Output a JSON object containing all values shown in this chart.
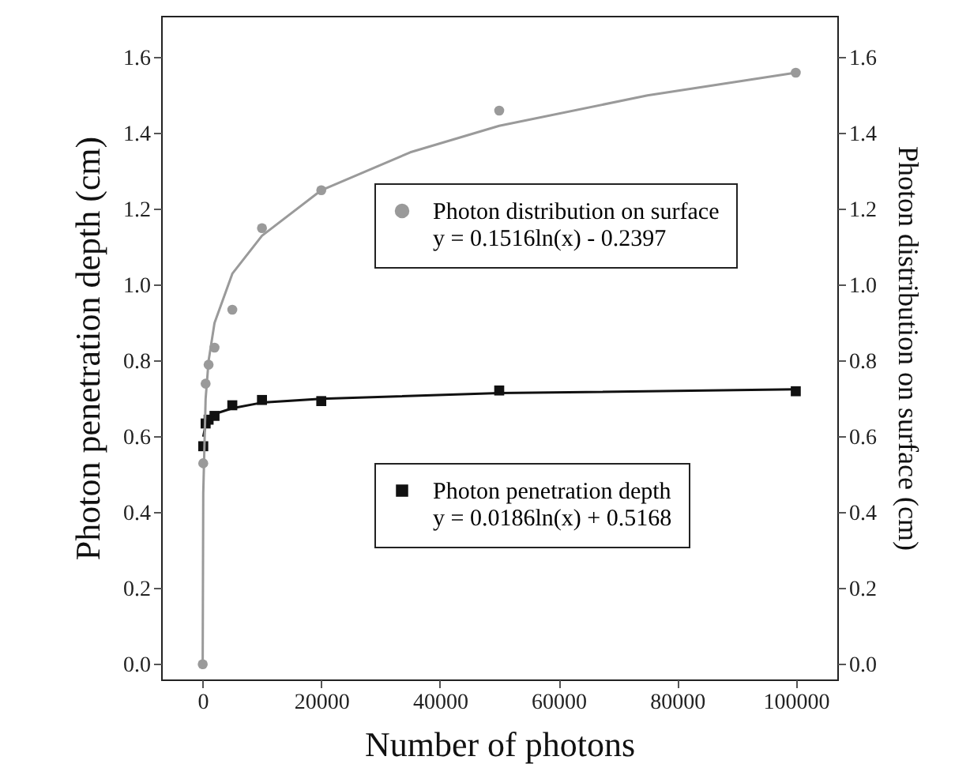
{
  "chart_data": {
    "type": "scatter",
    "xlabel": "Number of photons",
    "ylabel": "Photon penetration depth (cm)",
    "y2label": "Photon distribution on surface (cm)",
    "xlim": [
      -7000,
      107000
    ],
    "xticks": [
      0,
      20000,
      40000,
      60000,
      80000,
      100000
    ],
    "ylim": [
      -0.04,
      1.71
    ],
    "yticks": [
      {
        "value": 0,
        "label": "0.0"
      },
      0.2,
      0.4,
      0.6,
      0.8,
      {
        "value": 1,
        "label": "1.0"
      },
      1.2,
      1.4,
      1.6
    ],
    "y2lim": [
      -0.04,
      1.71
    ],
    "y2ticks": [
      {
        "value": 0,
        "label": "0.0"
      },
      0.2,
      0.4,
      0.6,
      0.8,
      {
        "value": 1,
        "label": "1.0"
      },
      1.2,
      1.4,
      1.6
    ],
    "grid": false,
    "legend": "right",
    "annotations": [
      "y = 0.1516ln(x) - 0.2397",
      "y = 0.0186ln(x) + 0.5168"
    ],
    "series": [
      {
        "name": "Photon distribution on surface",
        "axis": "y2",
        "marker": "circle",
        "color": "#9a9a9a",
        "x": [
          10,
          100,
          500,
          1000,
          2000,
          5000,
          10000,
          20000,
          50000,
          100000
        ],
        "values": [
          0.0,
          0.53,
          0.74,
          0.79,
          0.835,
          0.935,
          1.15,
          1.25,
          1.46,
          1.56
        ]
      },
      {
        "type": "line",
        "axis": "y2",
        "color": "#9a9a9a",
        "x": [
          5,
          100,
          500,
          1000,
          2000,
          5000,
          10000,
          20000,
          35000,
          50000,
          75000,
          100000
        ],
        "values": [
          0.0,
          0.45,
          0.7,
          0.8,
          0.9,
          1.03,
          1.13,
          1.25,
          1.35,
          1.42,
          1.5,
          1.56
        ]
      },
      {
        "name": "Photon penetration depth",
        "marker": "square",
        "color": "#111111",
        "x": [
          100,
          500,
          1000,
          2000,
          5000,
          10000,
          20000,
          50000,
          100000
        ],
        "values": [
          0.575,
          0.635,
          0.645,
          0.655,
          0.683,
          0.697,
          0.694,
          0.722,
          0.72
        ]
      },
      {
        "type": "line",
        "color": "#111111",
        "x": [
          100,
          500,
          1000,
          2000,
          5000,
          10000,
          20000,
          50000,
          100000
        ],
        "values": [
          0.6,
          0.63,
          0.645,
          0.66,
          0.675,
          0.69,
          0.7,
          0.715,
          0.725
        ]
      }
    ]
  }
}
